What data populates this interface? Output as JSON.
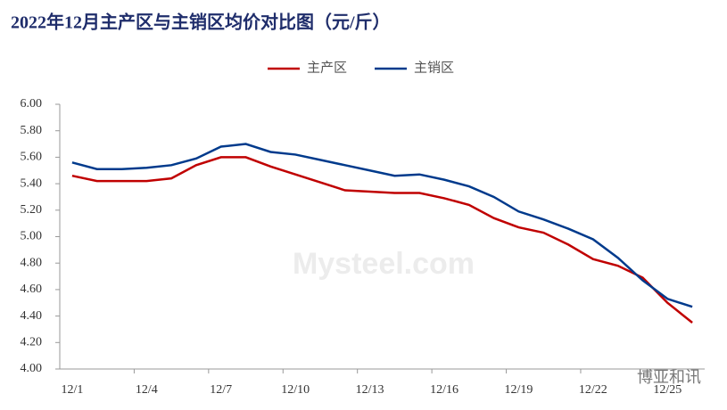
{
  "chart_data": {
    "type": "line",
    "title": "2022年12月主产区与主销区均价对比图（元/斤）",
    "watermark": "Mysteel.com",
    "source": "博亚和讯",
    "categories": [
      "12/1",
      null,
      null,
      "12/4",
      null,
      null,
      "12/7",
      null,
      null,
      "12/10",
      null,
      null,
      "12/13",
      null,
      null,
      "12/16",
      null,
      null,
      "12/19",
      null,
      null,
      "12/22",
      null,
      null,
      "12/25",
      null
    ],
    "series": [
      {
        "name": "主产区",
        "color": "#c00000",
        "values": [
          5.46,
          5.42,
          5.42,
          5.42,
          5.44,
          5.54,
          5.6,
          5.6,
          5.53,
          5.47,
          5.41,
          5.35,
          5.34,
          5.33,
          5.33,
          5.29,
          5.24,
          5.14,
          5.07,
          5.03,
          4.94,
          4.83,
          4.78,
          4.69,
          4.5,
          4.35
        ]
      },
      {
        "name": "主销区",
        "color": "#003a8c",
        "values": [
          5.56,
          5.51,
          5.51,
          5.52,
          5.54,
          5.59,
          5.68,
          5.7,
          5.64,
          5.62,
          5.58,
          5.54,
          5.5,
          5.46,
          5.47,
          5.43,
          5.38,
          5.3,
          5.19,
          5.13,
          5.06,
          4.98,
          4.84,
          4.67,
          4.53,
          4.47
        ]
      }
    ],
    "ylim": [
      4.0,
      6.0
    ],
    "yticks": [
      {
        "value": 4.0,
        "label": "4.00"
      },
      {
        "value": 4.2,
        "label": "4.20"
      },
      {
        "value": 4.4,
        "label": "4.40"
      },
      {
        "value": 4.6,
        "label": "4.60"
      },
      {
        "value": 4.8,
        "label": "4.80"
      },
      {
        "value": 5.0,
        "label": "5.00"
      },
      {
        "value": 5.2,
        "label": "5.20"
      },
      {
        "value": 5.4,
        "label": "5.40"
      },
      {
        "value": 5.6,
        "label": "5.60"
      },
      {
        "value": 5.8,
        "label": "5.80"
      },
      {
        "value": 6.0,
        "label": "6.00"
      }
    ],
    "grid": false,
    "legend": "top"
  }
}
